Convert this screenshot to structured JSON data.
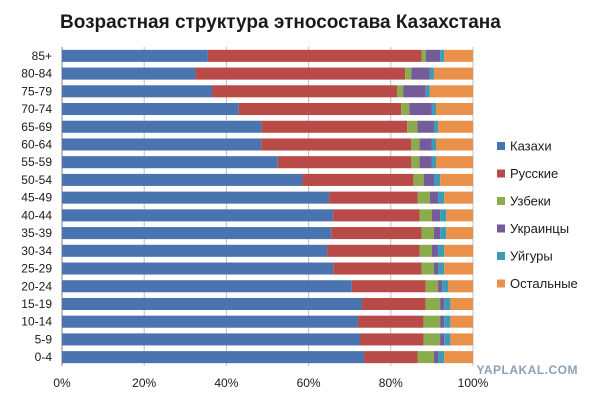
{
  "chart_data": {
    "type": "bar",
    "orientation": "horizontal",
    "stacked": "percent",
    "title": "Возрастная структура этносостава Казахстана",
    "xlabel": "",
    "ylabel": "",
    "xlim": [
      0,
      100
    ],
    "x_ticks": [
      "0%",
      "20%",
      "40%",
      "60%",
      "80%",
      "100%"
    ],
    "grid": "vertical",
    "legend_position": "right",
    "categories": [
      "85+",
      "80-84",
      "75-79",
      "70-74",
      "65-69",
      "60-64",
      "55-59",
      "50-54",
      "45-49",
      "40-44",
      "35-39",
      "30-34",
      "25-29",
      "20-24",
      "15-19",
      "10-14",
      "5-9",
      "0-4"
    ],
    "series": [
      {
        "name": "Казахи",
        "color": "#4a74b0",
        "values": [
          35.5,
          32.5,
          36.5,
          43,
          48.5,
          48.5,
          52.5,
          58.5,
          65,
          66,
          65.5,
          64.5,
          66,
          70.5,
          73,
          72,
          72.5,
          73.5
        ]
      },
      {
        "name": "Русские",
        "color": "#b84a48",
        "values": [
          52,
          51,
          45,
          39.5,
          35.5,
          36.5,
          32.5,
          27,
          21.5,
          21,
          22,
          22.5,
          21.5,
          18,
          15.5,
          16,
          15.5,
          13
        ]
      },
      {
        "name": "Узбеки",
        "color": "#8aac4c",
        "values": [
          1,
          1.5,
          1.5,
          2,
          2.5,
          2,
          2,
          2.5,
          3,
          3,
          3,
          3,
          3,
          3,
          3.5,
          4,
          4,
          4
        ]
      },
      {
        "name": "Украинцы",
        "color": "#745b99",
        "values": [
          3.5,
          4.5,
          5.5,
          5.5,
          4,
          3,
          3,
          2.5,
          2,
          2,
          1.5,
          1.5,
          1,
          1,
          1,
          1,
          1,
          1
        ]
      },
      {
        "name": "Уйгуры",
        "color": "#3d9bb6",
        "values": [
          1,
          1,
          1,
          1,
          1,
          1,
          1,
          1.5,
          1.5,
          1.5,
          1.5,
          1.5,
          1.5,
          1.5,
          1.5,
          1.5,
          1.5,
          1.5
        ]
      },
      {
        "name": "Остальные",
        "color": "#e9914a",
        "values": [
          7,
          9.5,
          10.5,
          9,
          8.5,
          9,
          9,
          8,
          7,
          6.5,
          6.5,
          7,
          7,
          6,
          5.5,
          5.5,
          5.5,
          7
        ]
      }
    ]
  },
  "watermark": {
    "text": "YAPLAKAL.COM"
  }
}
